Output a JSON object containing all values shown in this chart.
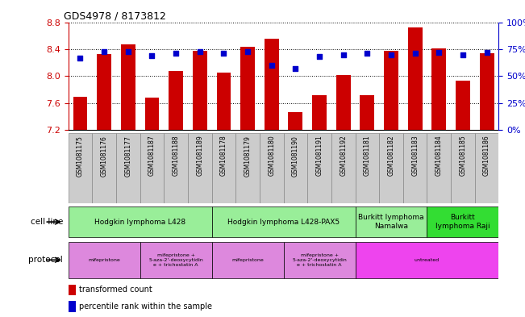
{
  "title": "GDS4978 / 8173812",
  "samples": [
    "GSM1081175",
    "GSM1081176",
    "GSM1081177",
    "GSM1081187",
    "GSM1081188",
    "GSM1081189",
    "GSM1081178",
    "GSM1081179",
    "GSM1081180",
    "GSM1081190",
    "GSM1081191",
    "GSM1081192",
    "GSM1081181",
    "GSM1081182",
    "GSM1081183",
    "GSM1081184",
    "GSM1081185",
    "GSM1081186"
  ],
  "transformed_count": [
    7.69,
    8.33,
    8.47,
    7.68,
    8.07,
    8.37,
    8.05,
    8.43,
    8.56,
    7.47,
    7.72,
    8.01,
    7.72,
    8.37,
    8.72,
    8.41,
    7.93,
    8.34
  ],
  "percentile_rank": [
    67,
    73,
    73,
    69,
    71,
    73,
    71,
    73,
    60,
    57,
    68,
    70,
    71,
    70,
    71,
    72,
    70,
    72
  ],
  "ylim_left": [
    7.2,
    8.8
  ],
  "ylim_right": [
    0,
    100
  ],
  "yticks_left": [
    7.2,
    7.6,
    8.0,
    8.4,
    8.8
  ],
  "yticks_right": [
    0,
    25,
    50,
    75,
    100
  ],
  "bar_color": "#cc0000",
  "dot_color": "#0000cc",
  "bar_bottom": 7.2,
  "cell_line_groups": [
    {
      "label": "Hodgkin lymphoma L428",
      "start": 0,
      "end": 5,
      "color": "#99ee99"
    },
    {
      "label": "Hodgkin lymphoma L428-PAX5",
      "start": 6,
      "end": 11,
      "color": "#99ee99"
    },
    {
      "label": "Burkitt lymphoma\nNamalwa",
      "start": 12,
      "end": 14,
      "color": "#99ee99"
    },
    {
      "label": "Burkitt\nlymphoma Raji",
      "start": 15,
      "end": 17,
      "color": "#33dd33"
    }
  ],
  "protocol_groups": [
    {
      "label": "mifepristone",
      "start": 0,
      "end": 2,
      "color": "#dd88dd"
    },
    {
      "label": "mifepristone +\n5-aza-2'-deoxycytidin\ne + trichostatin A",
      "start": 3,
      "end": 5,
      "color": "#dd88dd"
    },
    {
      "label": "mifepristone",
      "start": 6,
      "end": 8,
      "color": "#dd88dd"
    },
    {
      "label": "mifepristone +\n5-aza-2'-deoxycytidin\ne + trichostatin A",
      "start": 9,
      "end": 11,
      "color": "#dd88dd"
    },
    {
      "label": "untreated",
      "start": 12,
      "end": 17,
      "color": "#ee44ee"
    }
  ],
  "left_axis_color": "#cc0000",
  "right_axis_color": "#0000cc",
  "bg_color": "#ffffff",
  "cell_line_label": "cell line",
  "protocol_label": "protocol",
  "sample_bg_color": "#cccccc",
  "sample_border_color": "#888888"
}
